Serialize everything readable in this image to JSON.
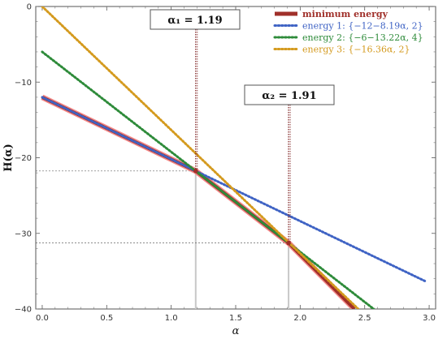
{
  "chart_data": {
    "type": "line",
    "xlabel": "α",
    "ylabel": "H(α)",
    "xlim": [
      -0.05,
      3.05
    ],
    "ylim": [
      -40,
      0
    ],
    "x_ticks": [
      "0.0",
      "0.5",
      "1.0",
      "1.5",
      "2.0",
      "2.5",
      "3.0"
    ],
    "x_tick_values": [
      0,
      0.5,
      1.0,
      1.5,
      2.0,
      2.5,
      3.0
    ],
    "y_ticks": [
      "0",
      "−10",
      "−20",
      "−30",
      "−40"
    ],
    "y_tick_values": [
      0,
      -10,
      -20,
      -30,
      -40
    ],
    "grid": false,
    "legend_position": "top-right",
    "series": [
      {
        "name": "minimum energy",
        "style": "solid",
        "color": "#a0302a",
        "x": [
          0,
          1.19,
          1.91,
          2.42
        ],
        "y": [
          -12.0,
          -21.75,
          -31.27,
          -40.0
        ]
      },
      {
        "name": "energy 1: {−12−8.19α, 2}",
        "style": "dotted",
        "color": "#3f63c4",
        "x": [
          0,
          2.98
        ],
        "y": [
          -12.0,
          -36.41
        ]
      },
      {
        "name": "energy 2: {−6−13.22α, 4}",
        "style": "dotted",
        "color": "#2e8b3a",
        "x": [
          0,
          2.57
        ],
        "y": [
          -6.0,
          -40.0
        ]
      },
      {
        "name": "energy 3: {−16.36α, 2}",
        "style": "dotted",
        "color": "#d49a1e",
        "x": [
          0,
          2.45
        ],
        "y": [
          0,
          -40.0
        ]
      }
    ],
    "annotations": [
      {
        "label": "α₁ = 1.19",
        "x": 1.19,
        "y": -21.75
      },
      {
        "label": "α₂ = 1.91",
        "x": 1.91,
        "y": -31.27
      }
    ]
  }
}
